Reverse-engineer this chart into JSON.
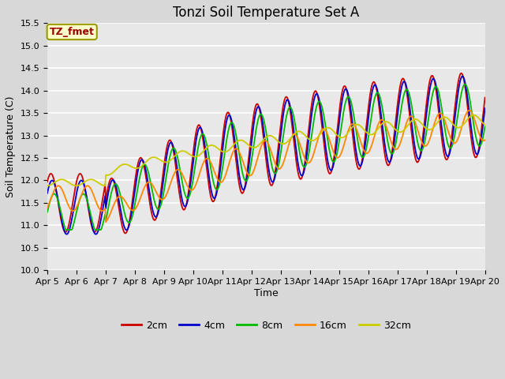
{
  "title": "Tonzi Soil Temperature Set A",
  "xlabel": "Time",
  "ylabel": "Soil Temperature (C)",
  "ylim": [
    10.0,
    15.5
  ],
  "yticks": [
    10.0,
    10.5,
    11.0,
    11.5,
    12.0,
    12.5,
    13.0,
    13.5,
    14.0,
    14.5,
    15.0,
    15.5
  ],
  "xtick_labels": [
    "Apr 5",
    "Apr 6",
    "Apr 7",
    "Apr 8",
    "Apr 9",
    "Apr 10",
    "Apr 11",
    "Apr 12",
    "Apr 13",
    "Apr 14",
    "Apr 15",
    "Apr 16",
    "Apr 17",
    "Apr 18",
    "Apr 19",
    "Apr 20"
  ],
  "colors": {
    "2cm": "#cc0000",
    "4cm": "#0000cc",
    "8cm": "#00bb00",
    "16cm": "#ff8800",
    "32cm": "#cccc00"
  },
  "legend_label": "TZ_fmet",
  "legend_box_facecolor": "#ffffcc",
  "legend_box_edgecolor": "#999900",
  "legend_text_color": "#990000",
  "fig_facecolor": "#d8d8d8",
  "plot_facecolor": "#e8e8e8",
  "grid_color": "#ffffff",
  "title_fontsize": 12,
  "label_fontsize": 9,
  "tick_fontsize": 8
}
